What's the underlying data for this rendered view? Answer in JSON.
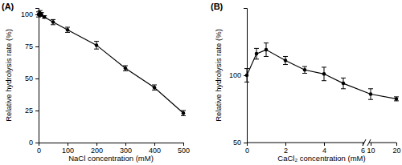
{
  "chart_data": [
    {
      "type": "line",
      "title": "(A)",
      "x_label": "NaCl concentration (mM)",
      "y_label": "Relative hydrolysis rate (%)",
      "x": [
        0,
        5,
        10,
        20,
        50,
        100,
        200,
        300,
        400,
        500
      ],
      "values": [
        100,
        101,
        100,
        98,
        94,
        88,
        76,
        58,
        43,
        23
      ],
      "errors": [
        2,
        2,
        1.5,
        1,
        2,
        2,
        3,
        2,
        2,
        2
      ],
      "color": "#000000",
      "marker": "circle",
      "line_style": "solid",
      "xlim": [
        0,
        500
      ],
      "xticks": [
        0,
        100,
        200,
        300,
        400,
        500
      ],
      "ylim": [
        0,
        105
      ],
      "yticks": [
        0,
        25,
        50,
        75,
        100
      ],
      "grid": false
    },
    {
      "type": "line",
      "title": "(B)",
      "x_label": "CaCl₂ concentration (mM)",
      "y_label": "Relative hydrolysis rate (%)",
      "x": [
        0,
        0.5,
        1,
        2,
        3,
        4,
        5,
        10,
        20
      ],
      "values": [
        100,
        116,
        119,
        111,
        104,
        101,
        94,
        86,
        82.5
      ],
      "errors": [
        5,
        4,
        5,
        3,
        2.5,
        5,
        4,
        4,
        1.5
      ],
      "color": "#000000",
      "marker": "circle",
      "line_style": "solid",
      "xlim": [
        0,
        20
      ],
      "xticks": [
        0,
        2,
        4,
        6,
        10,
        20
      ],
      "x_break": [
        6,
        10
      ],
      "ylim": [
        50,
        150
      ],
      "yticks": [
        50,
        100
      ],
      "grid": false
    }
  ]
}
